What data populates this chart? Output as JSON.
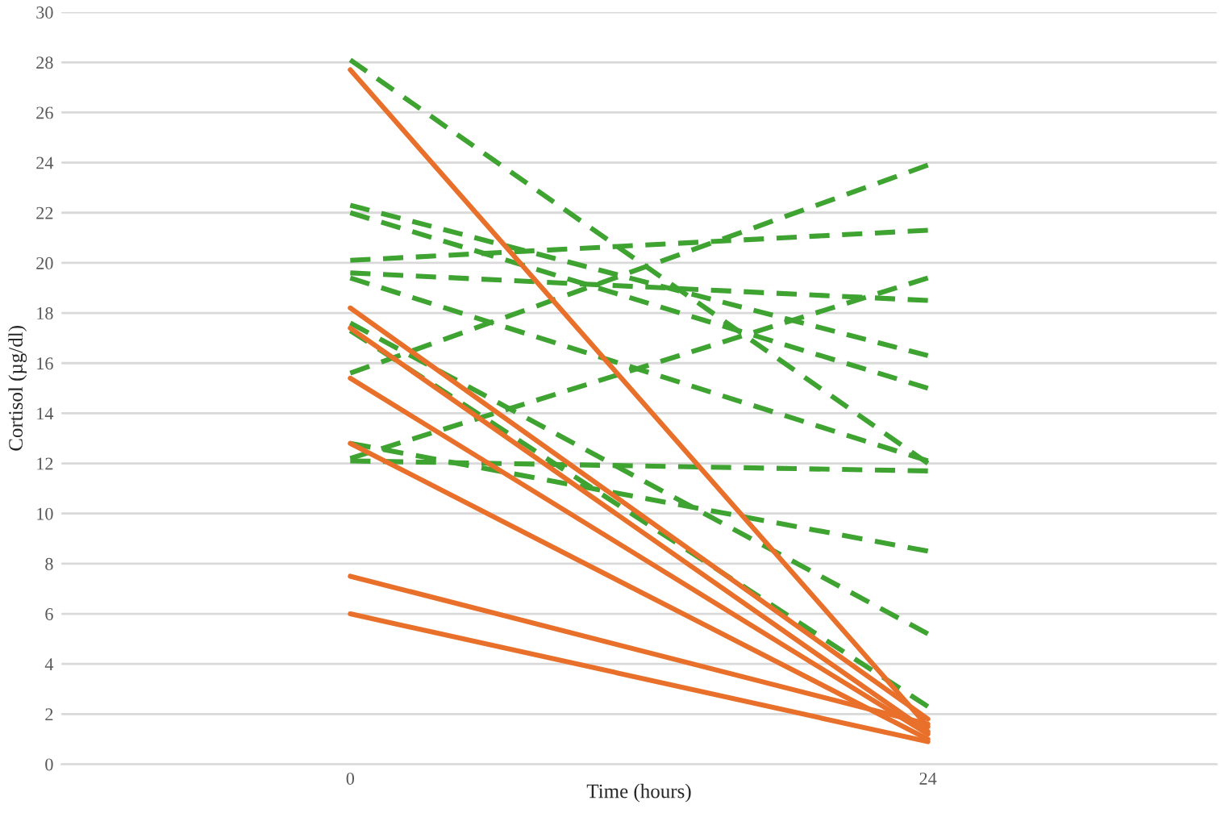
{
  "chart_data": {
    "type": "line",
    "xlabel": "Time (hours)",
    "ylabel": "Cortisol (µg/dl)",
    "x": [
      0,
      24
    ],
    "xlim": [
      -12,
      36
    ],
    "xticks": [
      0,
      24
    ],
    "ylim": [
      0,
      30
    ],
    "yticks": [
      0,
      2,
      4,
      6,
      8,
      10,
      12,
      14,
      16,
      18,
      20,
      22,
      24,
      26,
      28,
      30
    ],
    "grid": "y",
    "marker": "none",
    "series": [
      {
        "color": "#3ea331",
        "line_style": "dashed",
        "values": [
          28.1,
          12.0
        ]
      },
      {
        "color": "#3ea331",
        "line_style": "dashed",
        "values": [
          22.3,
          16.3
        ]
      },
      {
        "color": "#3ea331",
        "line_style": "dashed",
        "values": [
          22.0,
          15.0
        ]
      },
      {
        "color": "#3ea331",
        "line_style": "dashed",
        "values": [
          20.1,
          21.3
        ]
      },
      {
        "color": "#3ea331",
        "line_style": "dashed",
        "values": [
          19.6,
          18.5
        ]
      },
      {
        "color": "#3ea331",
        "line_style": "dashed",
        "values": [
          19.4,
          12.1
        ]
      },
      {
        "color": "#3ea331",
        "line_style": "dashed",
        "values": [
          17.6,
          5.2
        ]
      },
      {
        "color": "#3ea331",
        "line_style": "dashed",
        "values": [
          17.3,
          2.3
        ]
      },
      {
        "color": "#3ea331",
        "line_style": "dashed",
        "values": [
          15.6,
          23.9
        ]
      },
      {
        "color": "#3ea331",
        "line_style": "dashed",
        "values": [
          12.8,
          8.5
        ]
      },
      {
        "color": "#3ea331",
        "line_style": "dashed",
        "values": [
          12.2,
          19.4
        ]
      },
      {
        "color": "#3ea331",
        "line_style": "dashed",
        "values": [
          12.1,
          11.7
        ]
      },
      {
        "color": "#e8702a",
        "line_style": "solid",
        "values": [
          27.7,
          1.5
        ]
      },
      {
        "color": "#e8702a",
        "line_style": "solid",
        "values": [
          18.2,
          1.8
        ]
      },
      {
        "color": "#e8702a",
        "line_style": "solid",
        "values": [
          17.4,
          1.3
        ]
      },
      {
        "color": "#e8702a",
        "line_style": "solid",
        "values": [
          15.4,
          1.2
        ]
      },
      {
        "color": "#e8702a",
        "line_style": "solid",
        "values": [
          12.8,
          1.0
        ]
      },
      {
        "color": "#e8702a",
        "line_style": "solid",
        "values": [
          7.5,
          1.6
        ]
      },
      {
        "color": "#e8702a",
        "line_style": "solid",
        "values": [
          6.0,
          0.9
        ]
      }
    ]
  }
}
